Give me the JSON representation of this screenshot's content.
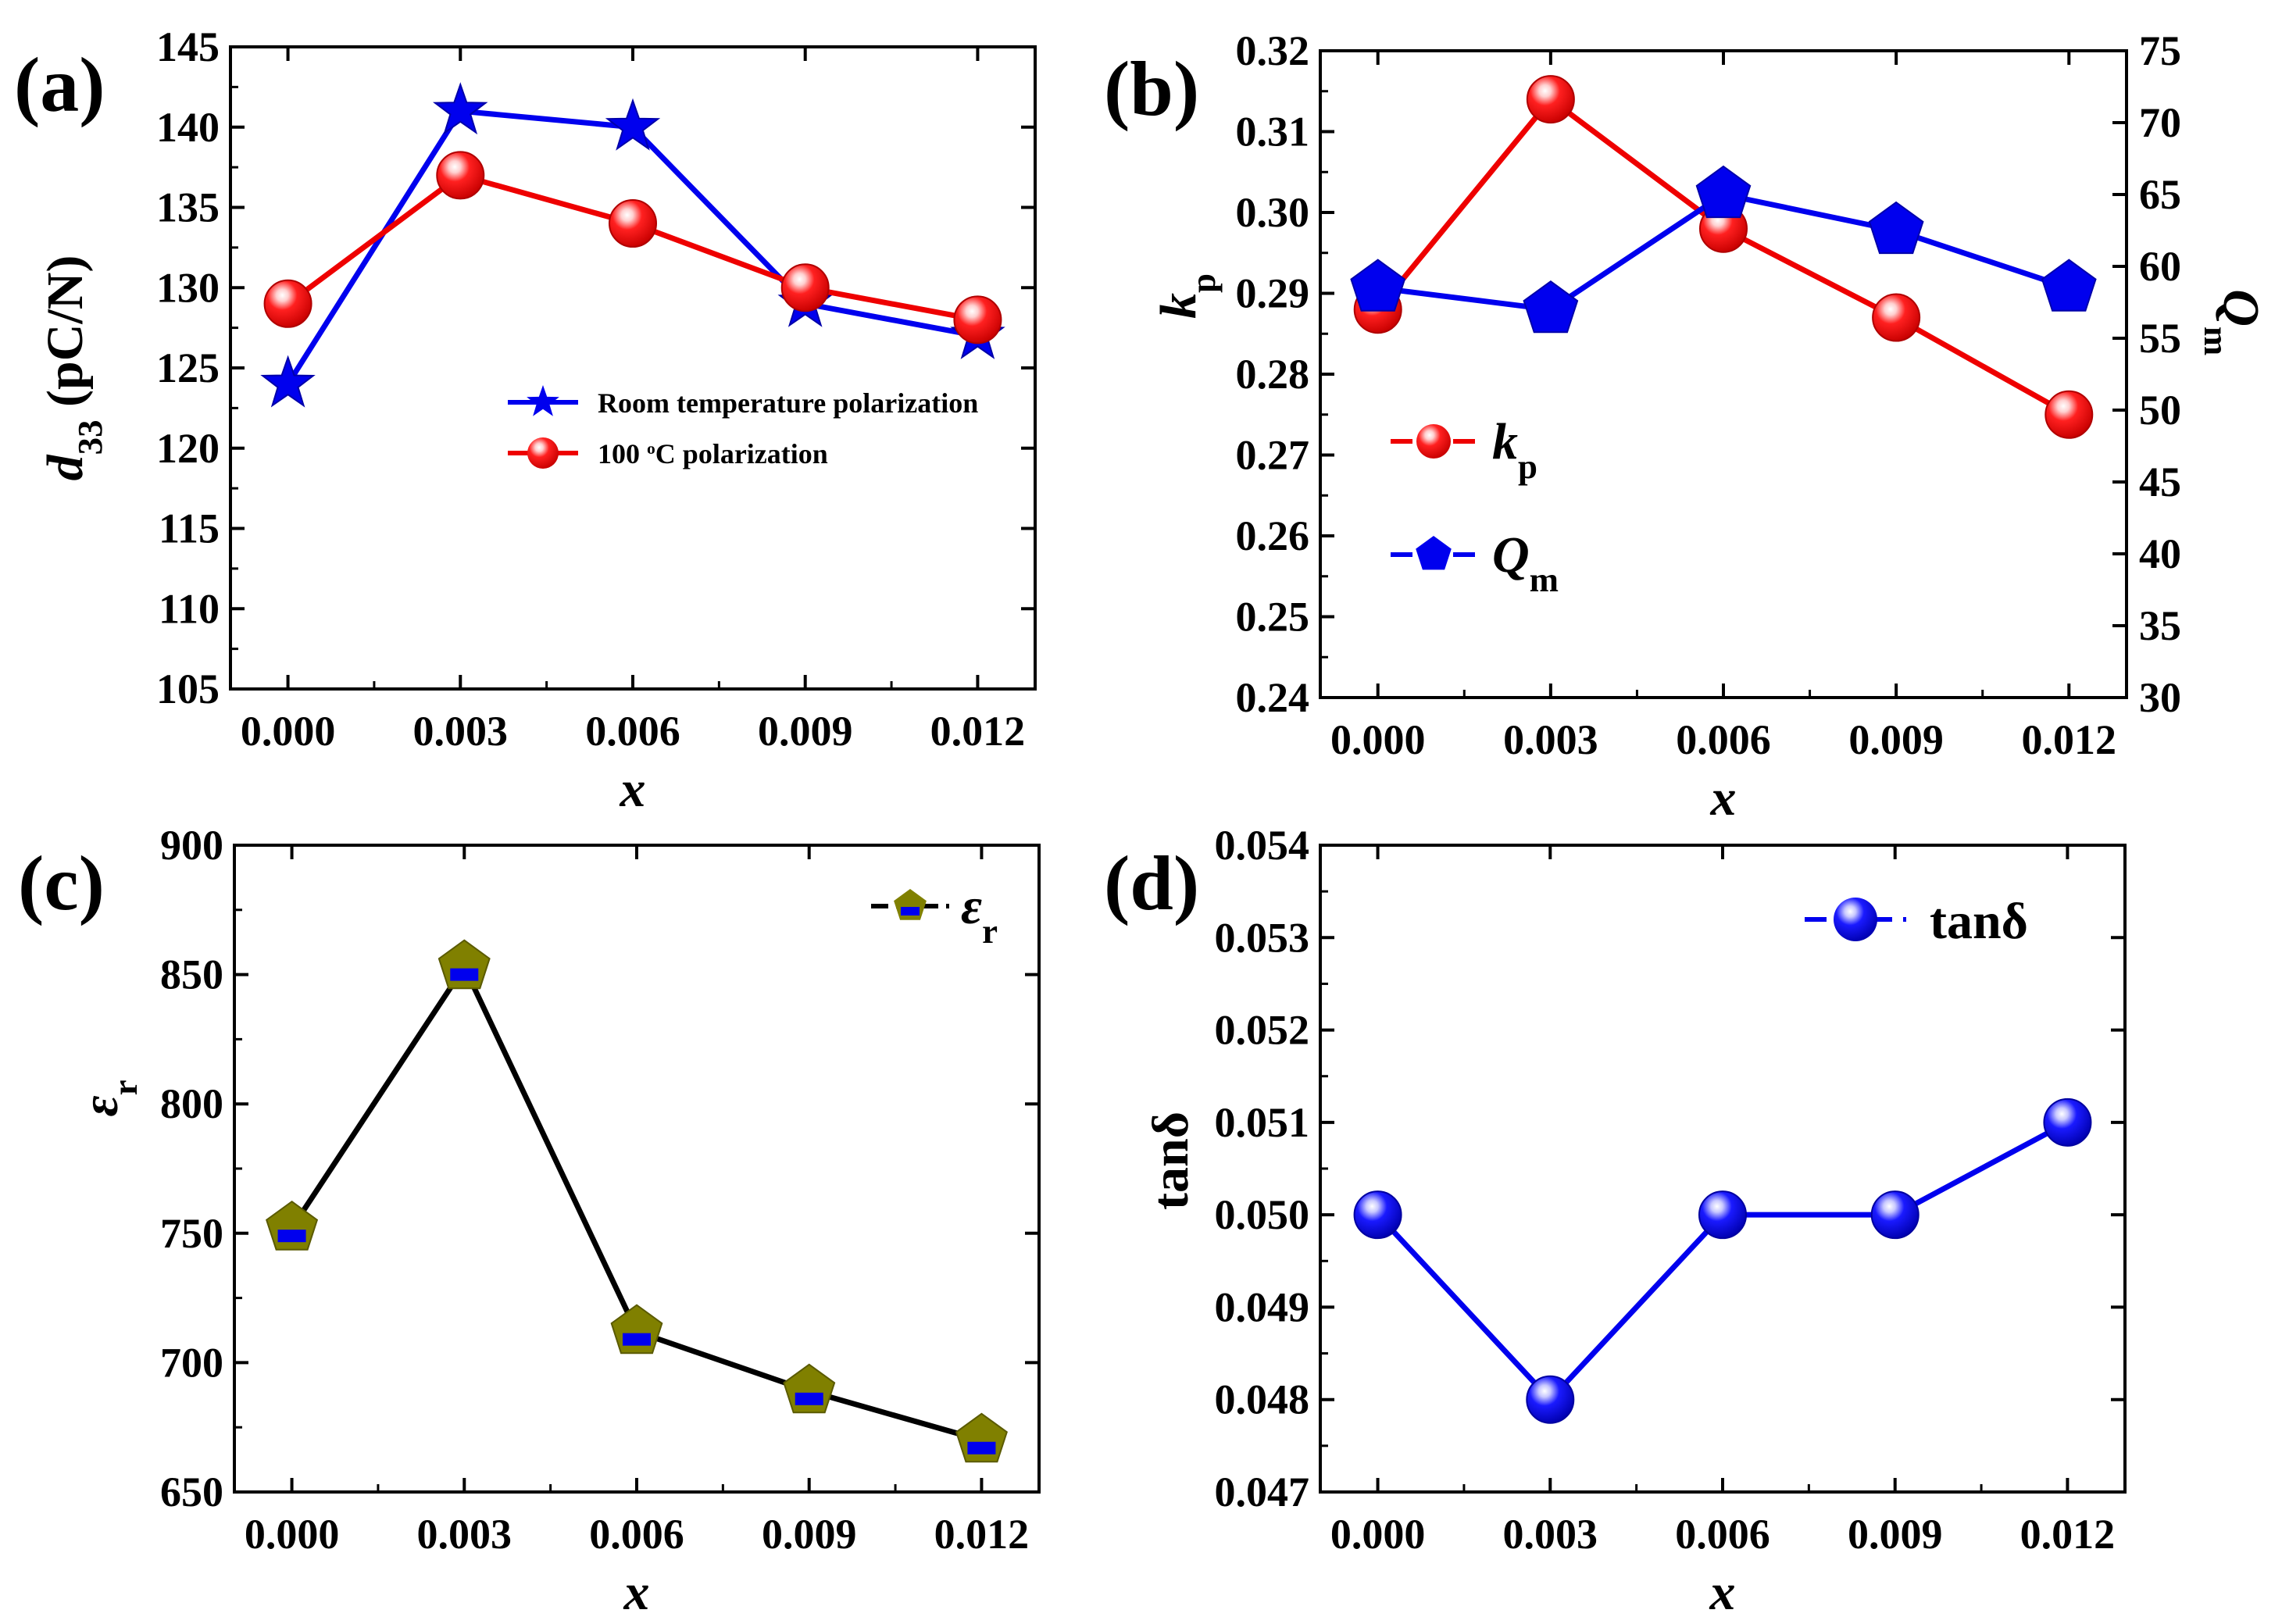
{
  "chart_data": [
    {
      "panel": "(a)",
      "type": "line",
      "x": [
        0.0,
        0.003,
        0.006,
        0.009,
        0.012
      ],
      "x_tick_labels": [
        "0.000",
        "0.003",
        "0.006",
        "0.009",
        "0.012"
      ],
      "xlabel": "x",
      "ylabel": "d33 (pC/N)",
      "ylim": [
        105,
        145
      ],
      "y_tick_labels": [
        "105",
        "110",
        "115",
        "120",
        "125",
        "130",
        "135",
        "140",
        "145"
      ],
      "legend_position": "middle-right",
      "series": [
        {
          "name": "Room temperature polarization",
          "color": "#0000ee",
          "marker": "star",
          "values": [
            124,
            141,
            140,
            129,
            127
          ]
        },
        {
          "name": "100 oC polarization",
          "color": "#ee0000",
          "marker": "sphere",
          "values": [
            129,
            137,
            134,
            130,
            128
          ]
        }
      ]
    },
    {
      "panel": "(b)",
      "type": "line",
      "x": [
        0.0,
        0.003,
        0.006,
        0.009,
        0.012
      ],
      "x_tick_labels": [
        "0.000",
        "0.003",
        "0.006",
        "0.009",
        "0.012"
      ],
      "xlabel": "x",
      "ylabel": "kp",
      "ylim": [
        0.24,
        0.32
      ],
      "y_tick_labels": [
        "0.24",
        "0.25",
        "0.26",
        "0.27",
        "0.28",
        "0.29",
        "0.30",
        "0.31",
        "0.32"
      ],
      "y2label": "Qm",
      "y2lim": [
        30,
        75
      ],
      "y2_tick_labels": [
        "30",
        "35",
        "40",
        "45",
        "50",
        "55",
        "60",
        "65",
        "70",
        "75"
      ],
      "legend_position": "middle-left",
      "series": [
        {
          "name": "kp",
          "color": "#ee0000",
          "marker": "sphere",
          "axis": "left",
          "values": [
            0.288,
            0.314,
            0.298,
            0.287,
            0.275
          ]
        },
        {
          "name": "Qm",
          "color": "#0000ee",
          "marker": "pentagon",
          "axis": "right",
          "values": [
            58.5,
            57.0,
            65.0,
            62.5,
            58.5
          ]
        }
      ]
    },
    {
      "panel": "(c)",
      "type": "line",
      "x": [
        0.0,
        0.003,
        0.006,
        0.009,
        0.012
      ],
      "x_tick_labels": [
        "0.000",
        "0.003",
        "0.006",
        "0.009",
        "0.012"
      ],
      "xlabel": "x",
      "ylabel": "εr",
      "ylim": [
        650,
        900
      ],
      "y_tick_labels": [
        "650",
        "700",
        "750",
        "800",
        "850",
        "900"
      ],
      "legend_position": "top-right",
      "series": [
        {
          "name": "εr",
          "color": "#000000",
          "marker": "pentagon-half",
          "marker_color": "#808000",
          "values": [
            752,
            853,
            712,
            689,
            670
          ]
        }
      ]
    },
    {
      "panel": "(d)",
      "type": "line",
      "x": [
        0.0,
        0.003,
        0.006,
        0.009,
        0.012
      ],
      "x_tick_labels": [
        "0.000",
        "0.003",
        "0.006",
        "0.009",
        "0.012"
      ],
      "xlabel": "x",
      "ylabel": "tanδ",
      "ylim": [
        0.047,
        0.054
      ],
      "y_tick_labels": [
        "0.047",
        "0.048",
        "0.049",
        "0.050",
        "0.051",
        "0.052",
        "0.053",
        "0.054"
      ],
      "legend_position": "top-right",
      "series": [
        {
          "name": "tanδ",
          "color": "#0000ee",
          "marker": "sphere",
          "values": [
            0.05,
            0.048,
            0.05,
            0.05,
            0.051
          ]
        }
      ]
    }
  ]
}
